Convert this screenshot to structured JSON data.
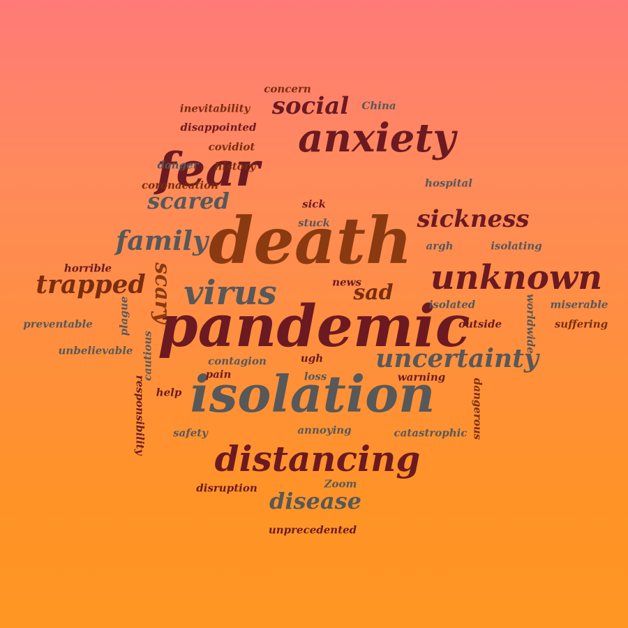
{
  "palette": {
    "maroon": "#6b1a22",
    "rust": "#7a2d0e",
    "burnt": "#8a3a10",
    "slate": "#56585a"
  },
  "words": [
    {
      "text": "death",
      "color": "burnt"
    },
    {
      "text": "pandemic",
      "color": "maroon"
    },
    {
      "text": "isolation",
      "color": "slate"
    },
    {
      "text": "fear",
      "color": "maroon"
    },
    {
      "text": "anxiety",
      "color": "maroon"
    },
    {
      "text": "distancing",
      "color": "maroon"
    },
    {
      "text": "unknown",
      "color": "maroon"
    },
    {
      "text": "virus",
      "color": "slate"
    },
    {
      "text": "uncertainty",
      "color": "slate"
    },
    {
      "text": "trapped",
      "color": "rust"
    },
    {
      "text": "family",
      "color": "slate"
    },
    {
      "text": "sickness",
      "color": "maroon"
    },
    {
      "text": "social",
      "color": "maroon"
    },
    {
      "text": "scared",
      "color": "slate"
    },
    {
      "text": "disease",
      "color": "slate"
    },
    {
      "text": "scary",
      "color": "burnt"
    },
    {
      "text": "sad",
      "color": "rust"
    },
    {
      "text": "concern",
      "color": "rust"
    },
    {
      "text": "China",
      "color": "slate"
    },
    {
      "text": "inevitability",
      "color": "rust"
    },
    {
      "text": "disappointed",
      "color": "maroon"
    },
    {
      "text": "covidiot",
      "color": "rust"
    },
    {
      "text": "danger",
      "color": "slate"
    },
    {
      "text": "history",
      "color": "rust"
    },
    {
      "text": "coronacation",
      "color": "rust"
    },
    {
      "text": "hospital",
      "color": "slate"
    },
    {
      "text": "sick",
      "color": "maroon"
    },
    {
      "text": "stuck",
      "color": "slate"
    },
    {
      "text": "argh",
      "color": "slate"
    },
    {
      "text": "isolating",
      "color": "slate"
    },
    {
      "text": "horrible",
      "color": "maroon"
    },
    {
      "text": "news",
      "color": "maroon"
    },
    {
      "text": "worldwide",
      "color": "slate"
    },
    {
      "text": "isolated",
      "color": "slate"
    },
    {
      "text": "miserable",
      "color": "slate"
    },
    {
      "text": "plague",
      "color": "slate"
    },
    {
      "text": "preventable",
      "color": "slate"
    },
    {
      "text": "outside",
      "color": "maroon"
    },
    {
      "text": "suffering",
      "color": "rust"
    },
    {
      "text": "cautious",
      "color": "slate"
    },
    {
      "text": "unbelievable",
      "color": "slate"
    },
    {
      "text": "contagion",
      "color": "slate"
    },
    {
      "text": "ugh",
      "color": "maroon"
    },
    {
      "text": "responsibility",
      "color": "maroon"
    },
    {
      "text": "pain",
      "color": "maroon"
    },
    {
      "text": "loss",
      "color": "slate"
    },
    {
      "text": "warning",
      "color": "maroon"
    },
    {
      "text": "dangerous",
      "color": "rust"
    },
    {
      "text": "help",
      "color": "maroon"
    },
    {
      "text": "safety",
      "color": "slate"
    },
    {
      "text": "annoying",
      "color": "slate"
    },
    {
      "text": "catastrophic",
      "color": "slate"
    },
    {
      "text": "Zoom",
      "color": "slate"
    },
    {
      "text": "disruption",
      "color": "maroon"
    },
    {
      "text": "unprecedented",
      "color": "maroon"
    }
  ]
}
